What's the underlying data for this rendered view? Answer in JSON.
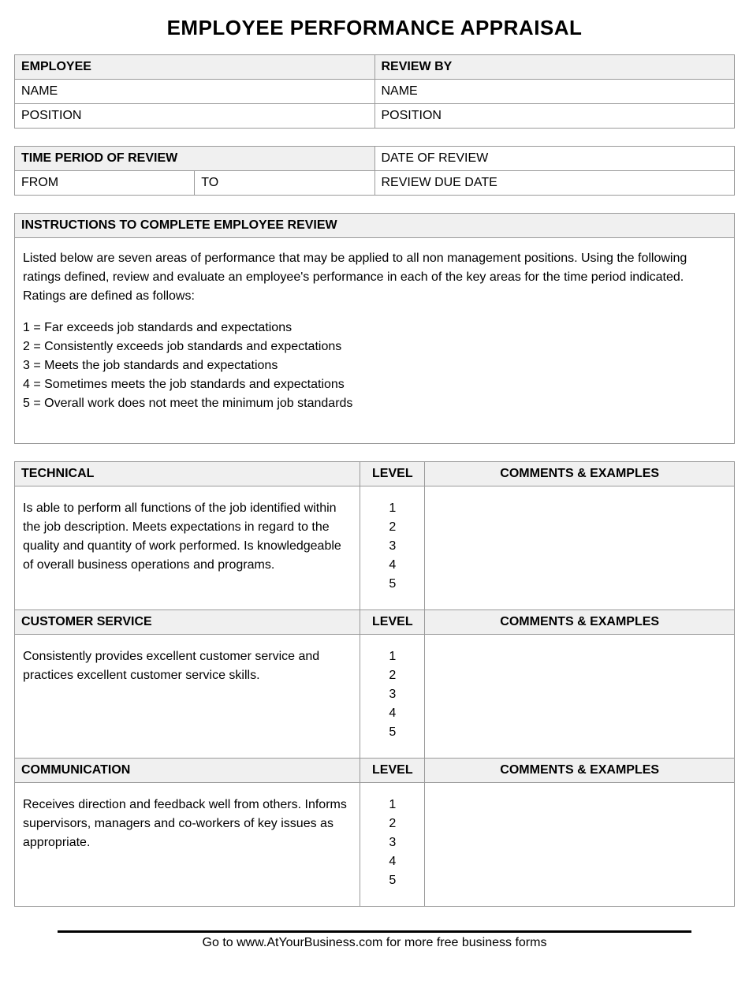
{
  "title": "EMPLOYEE PERFORMANCE APPRAISAL",
  "info": {
    "employee_header": "EMPLOYEE",
    "review_by_header": "REVIEW BY",
    "name_label": "NAME",
    "position_label": "POSITION"
  },
  "period": {
    "time_period_header": "TIME  PERIOD OF REVIEW",
    "date_of_review": "DATE OF REVIEW",
    "from": "FROM",
    "to": "TO",
    "review_due_date": "REVIEW DUE DATE"
  },
  "instructions": {
    "header": "INSTRUCTIONS TO COMPLETE EMPLOYEE REVIEW",
    "intro": "Listed below are seven areas of performance that may be applied to all non management positions. Using the following ratings defined, review and evaluate an employee's performance in each of the key areas for the time period indicated.  Ratings are defined as follows:",
    "rating1": "1 = Far exceeds job standards and expectations",
    "rating2": "2 = Consistently exceeds job standards and expectations",
    "rating3": "3 = Meets the job standards and expectations",
    "rating4": "4 = Sometimes meets the job standards and expectations",
    "rating5": "5 = Overall work does not meet the minimum job standards"
  },
  "columns": {
    "level": "LEVEL",
    "comments": "COMMENTS & EXAMPLES"
  },
  "levels": {
    "l1": "1",
    "l2": "2",
    "l3": "3",
    "l4": "4",
    "l5": "5"
  },
  "sections": {
    "technical": {
      "title": "TECHNICAL",
      "desc": "Is able to perform all functions of the job identified within the job description. Meets expectations in regard to the quality and quantity of work performed. Is knowledgeable of overall business operations and programs."
    },
    "customer_service": {
      "title": "CUSTOMER SERVICE",
      "desc": "Consistently provides excellent customer service and practices excellent customer service skills."
    },
    "communication": {
      "title": "COMMUNICATION",
      "desc": "Receives direction and feedback well from others. Informs supervisors, managers and co-workers of key issues as appropriate."
    }
  },
  "footer": "Go to www.AtYourBusiness.com for more free business forms"
}
